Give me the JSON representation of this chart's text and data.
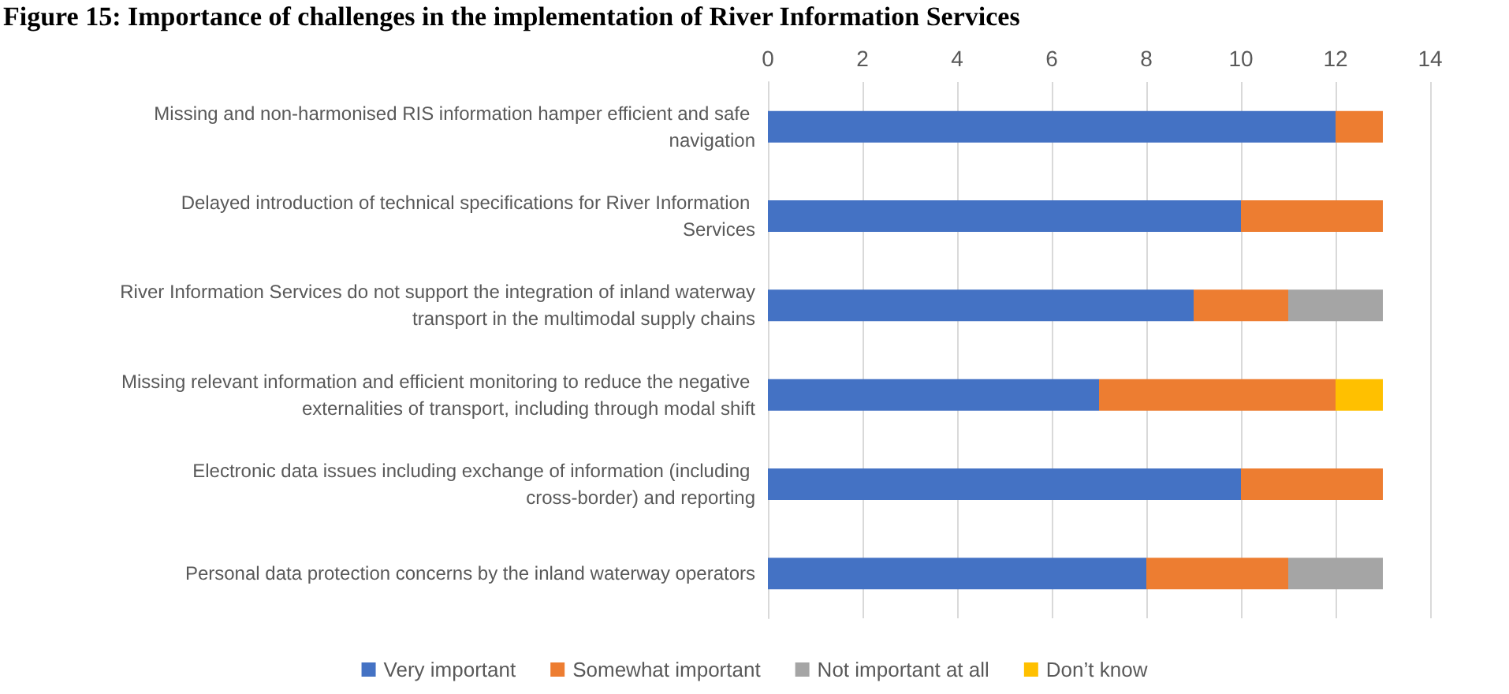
{
  "chart_data": {
    "type": "bar",
    "orientation": "horizontal",
    "stacked": true,
    "title": "Figure 15: Importance of challenges in the implementation of River Information Services",
    "categories": [
      "Missing and non-harmonised RIS information hamper efficient and safe navigation",
      "Delayed introduction of technical specifications for River Information Services",
      "River Information Services do not support the integration of inland waterway transport in the multimodal supply chains",
      "Missing relevant information and efficient monitoring to reduce the negative externalities of transport, including through modal shift",
      "Electronic data issues including exchange of information (including cross-border) and reporting",
      "Personal data protection concerns by the inland waterway operators"
    ],
    "series": [
      {
        "name": "Very important",
        "color": "#4472c4",
        "values": [
          12,
          10,
          9,
          7,
          10,
          8
        ]
      },
      {
        "name": "Somewhat important",
        "color": "#ed7d31",
        "values": [
          1,
          3,
          2,
          5,
          3,
          3
        ]
      },
      {
        "name": "Not important at all",
        "color": "#a5a5a5",
        "values": [
          null,
          null,
          2,
          null,
          null,
          2
        ]
      },
      {
        "name": "Don’t know",
        "color": "#ffc000",
        "values": [
          null,
          null,
          null,
          1,
          null,
          null
        ]
      }
    ],
    "xlim": [
      0,
      14
    ],
    "xticks": [
      0,
      2,
      4,
      6,
      8,
      10,
      12,
      14
    ],
    "grid": "x",
    "legend": "bottom"
  }
}
